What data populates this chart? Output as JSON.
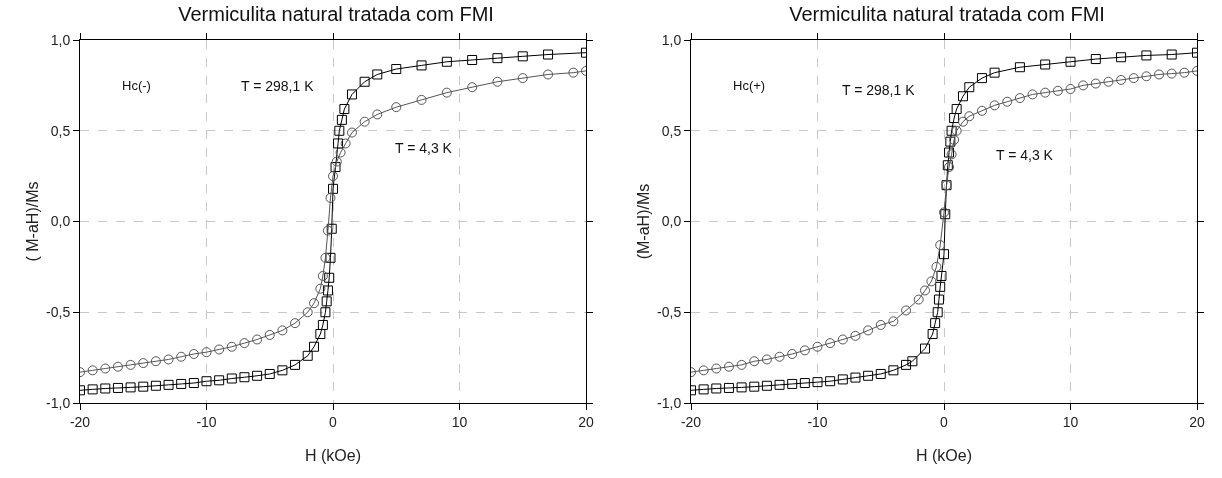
{
  "chart_data": [
    {
      "type": "line",
      "title": "Vermiculita natural tratada com FMI",
      "xlabel": "H (kOe)",
      "ylabel": "( M-aH)/Ms",
      "xlim": [
        -20,
        20
      ],
      "xticks": [
        -20,
        -10,
        0,
        10,
        20
      ],
      "ylim": [
        -1,
        1
      ],
      "yticks": [
        {
          "value": -1,
          "label": "-1,0"
        },
        {
          "value": -0.5,
          "label": "-0,5"
        },
        {
          "value": 0,
          "label": "0,0"
        },
        {
          "value": 0.5,
          "label": "0,5"
        },
        {
          "value": 1,
          "label": "1,0"
        }
      ],
      "grid": true,
      "line_style": "solid",
      "annotations": [
        "Hc(-)",
        "T = 298,1 K",
        "T = 4,3 K"
      ],
      "series": [
        {
          "color": "#000000",
          "marker": "square",
          "x": [
            -20,
            -19,
            -18,
            -17,
            -16,
            -15,
            -14,
            -13,
            -12,
            -11,
            -10,
            -9,
            -8,
            -7,
            -6,
            -5,
            -4,
            -3,
            -2,
            -1.5,
            -1,
            -0.8,
            -0.6,
            -0.5,
            -0.4,
            -0.3,
            -0.2,
            -0.1,
            0,
            0.2,
            0.4,
            0.5,
            0.7,
            0.9,
            1.5,
            2.5,
            3.5,
            5,
            7,
            9,
            11,
            13,
            15,
            17,
            20
          ],
          "values": [
            -0.93,
            -0.925,
            -0.92,
            -0.917,
            -0.914,
            -0.91,
            -0.905,
            -0.9,
            -0.895,
            -0.89,
            -0.88,
            -0.875,
            -0.865,
            -0.858,
            -0.85,
            -0.84,
            -0.82,
            -0.79,
            -0.74,
            -0.69,
            -0.62,
            -0.57,
            -0.5,
            -0.44,
            -0.38,
            -0.31,
            -0.2,
            -0.04,
            0.18,
            0.3,
            0.43,
            0.5,
            0.56,
            0.62,
            0.7,
            0.77,
            0.81,
            0.84,
            0.86,
            0.88,
            0.89,
            0.9,
            0.91,
            0.92,
            0.93
          ]
        },
        {
          "color": "#555555",
          "marker": "circle",
          "x": [
            -20,
            -19,
            -18,
            -17,
            -16,
            -15,
            -14,
            -13,
            -12,
            -11,
            -10,
            -9,
            -8,
            -7,
            -6,
            -5,
            -4,
            -3,
            -2,
            -1.5,
            -1,
            -0.8,
            -0.6,
            -0.4,
            -0.2,
            0,
            0.3,
            0.6,
            1,
            1.5,
            2.5,
            3.5,
            5,
            7,
            9,
            11,
            13,
            15,
            17,
            19,
            20
          ],
          "values": [
            -0.83,
            -0.82,
            -0.81,
            -0.8,
            -0.79,
            -0.78,
            -0.77,
            -0.76,
            -0.745,
            -0.73,
            -0.72,
            -0.705,
            -0.69,
            -0.67,
            -0.65,
            -0.625,
            -0.6,
            -0.56,
            -0.5,
            -0.45,
            -0.37,
            -0.3,
            -0.2,
            -0.05,
            0.13,
            0.25,
            0.33,
            0.38,
            0.43,
            0.49,
            0.55,
            0.59,
            0.63,
            0.67,
            0.71,
            0.74,
            0.77,
            0.79,
            0.81,
            0.82,
            0.83
          ]
        }
      ]
    },
    {
      "type": "line",
      "title": "Vermiculita natural tratada com FMI",
      "xlabel": "H (kOe)",
      "ylabel": "(M-aH)/Ms",
      "xlim": [
        -20,
        20
      ],
      "xticks": [
        -20,
        -10,
        0,
        10,
        20
      ],
      "ylim": [
        -1,
        1
      ],
      "yticks": [
        {
          "value": -1,
          "label": "-1,0"
        },
        {
          "value": -0.5,
          "label": "-0,5"
        },
        {
          "value": 0,
          "label": "0,0"
        },
        {
          "value": 0.5,
          "label": "0,5"
        },
        {
          "value": 1,
          "label": "1,0"
        }
      ],
      "grid": true,
      "line_style": "solid",
      "annotations": [
        "Hc(+)",
        "T = 298,1 K",
        "T = 4,3 K"
      ],
      "series": [
        {
          "color": "#000000",
          "marker": "square",
          "x": [
            -20,
            -19,
            -18,
            -17,
            -16,
            -15,
            -14,
            -13,
            -12,
            -11,
            -10,
            -9,
            -8,
            -7,
            -6,
            -5,
            -4,
            -3,
            -2.5,
            -1.5,
            -0.9,
            -0.7,
            -0.5,
            -0.4,
            -0.3,
            -0.2,
            0,
            0.1,
            0.2,
            0.3,
            0.4,
            0.5,
            0.6,
            0.8,
            1,
            1.5,
            2,
            3,
            4,
            6,
            8,
            10,
            12,
            14,
            16,
            18,
            20
          ],
          "values": [
            -0.93,
            -0.925,
            -0.92,
            -0.917,
            -0.914,
            -0.91,
            -0.905,
            -0.9,
            -0.895,
            -0.89,
            -0.885,
            -0.88,
            -0.87,
            -0.86,
            -0.85,
            -0.84,
            -0.82,
            -0.79,
            -0.77,
            -0.7,
            -0.62,
            -0.56,
            -0.5,
            -0.43,
            -0.36,
            -0.3,
            -0.18,
            0.04,
            0.2,
            0.31,
            0.38,
            0.44,
            0.5,
            0.57,
            0.62,
            0.69,
            0.74,
            0.79,
            0.82,
            0.85,
            0.865,
            0.88,
            0.895,
            0.905,
            0.915,
            0.92,
            0.93
          ]
        },
        {
          "color": "#555555",
          "marker": "circle",
          "x": [
            -20,
            -19,
            -18,
            -17,
            -16,
            -15,
            -14,
            -13,
            -12,
            -11,
            -10,
            -9,
            -8,
            -7,
            -6,
            -5,
            -4,
            -3,
            -2,
            -1.5,
            -1,
            -0.6,
            -0.3,
            0,
            0.2,
            0.4,
            0.6,
            0.8,
            1,
            1.5,
            2,
            3,
            4,
            5,
            6,
            7,
            8,
            9,
            10,
            11,
            12,
            13,
            14,
            15,
            16,
            17,
            18,
            19,
            20
          ],
          "values": [
            -0.83,
            -0.82,
            -0.81,
            -0.8,
            -0.79,
            -0.77,
            -0.76,
            -0.745,
            -0.73,
            -0.71,
            -0.69,
            -0.67,
            -0.65,
            -0.63,
            -0.6,
            -0.57,
            -0.55,
            -0.49,
            -0.43,
            -0.38,
            -0.33,
            -0.25,
            -0.13,
            0.05,
            0.2,
            0.3,
            0.37,
            0.45,
            0.5,
            0.55,
            0.58,
            0.61,
            0.64,
            0.66,
            0.68,
            0.7,
            0.71,
            0.72,
            0.73,
            0.75,
            0.76,
            0.77,
            0.78,
            0.79,
            0.8,
            0.81,
            0.815,
            0.82,
            0.83
          ]
        }
      ]
    }
  ]
}
